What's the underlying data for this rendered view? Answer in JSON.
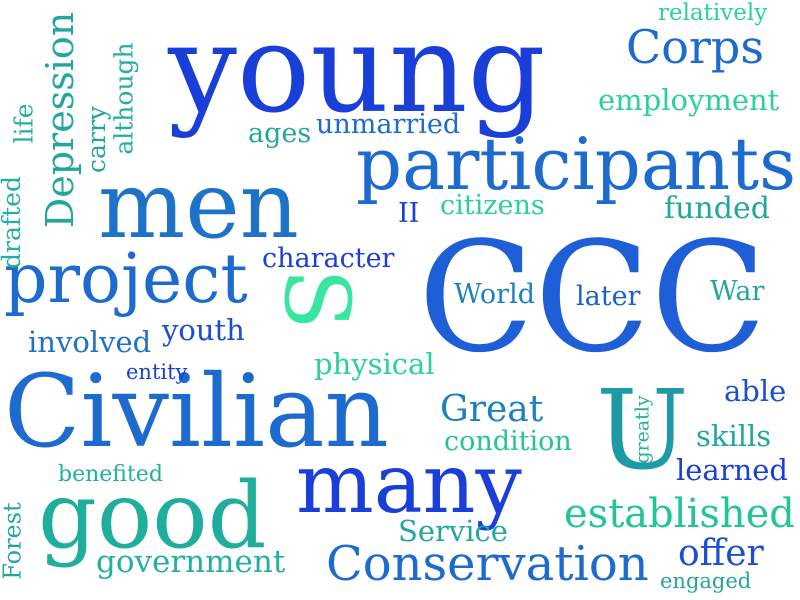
{
  "word_cloud": {
    "colors": {
      "royal_blue": "#1a3fd8",
      "mid_blue": "#1e6bd0",
      "teal": "#1e9aa6",
      "sea_green": "#23b99a",
      "mint": "#38e6a0"
    },
    "words": [
      {
        "key": "young",
        "text": "young",
        "color": "#1a3fd8",
        "orientation": "horizontal"
      },
      {
        "key": "ccc",
        "text": "CCC",
        "color": "#1e5ed6",
        "orientation": "horizontal"
      },
      {
        "key": "civilian",
        "text": "Civilian",
        "color": "#1e6bd0",
        "orientation": "horizontal"
      },
      {
        "key": "men",
        "text": "men",
        "color": "#1e73c8",
        "orientation": "horizontal"
      },
      {
        "key": "participants",
        "text": "participants",
        "color": "#1e6bd0",
        "orientation": "horizontal"
      },
      {
        "key": "many",
        "text": "many",
        "color": "#1a3fd8",
        "orientation": "horizontal"
      },
      {
        "key": "good",
        "text": "good",
        "color": "#1fae9c",
        "orientation": "horizontal"
      },
      {
        "key": "project",
        "text": "project",
        "color": "#1e6bd0",
        "orientation": "horizontal"
      },
      {
        "key": "conservation",
        "text": "Conservation",
        "color": "#1e6bd0",
        "orientation": "horizontal"
      },
      {
        "key": "s",
        "text": "S",
        "color": "#38e6a0",
        "orientation": "vertical"
      },
      {
        "key": "u",
        "text": "U",
        "color": "#1e9aa6",
        "orientation": "vertical"
      },
      {
        "key": "corps",
        "text": "Corps",
        "color": "#1e6bd0",
        "orientation": "horizontal"
      },
      {
        "key": "established",
        "text": "established",
        "color": "#23c49a",
        "orientation": "horizontal"
      },
      {
        "key": "depression",
        "text": "Depression",
        "color": "#23a6a0",
        "orientation": "vertical"
      },
      {
        "key": "great",
        "text": "Great",
        "color": "#1e80c4",
        "orientation": "horizontal"
      },
      {
        "key": "offer",
        "text": "offer",
        "color": "#1a4fd0",
        "orientation": "horizontal"
      },
      {
        "key": "government",
        "text": "government",
        "color": "#23b0a0",
        "orientation": "horizontal"
      },
      {
        "key": "character",
        "text": "character",
        "color": "#1a3fd8",
        "orientation": "horizontal"
      },
      {
        "key": "funded",
        "text": "funded",
        "color": "#23a6a0",
        "orientation": "horizontal"
      },
      {
        "key": "employment",
        "text": "employment",
        "color": "#2bd19a",
        "orientation": "horizontal"
      },
      {
        "key": "physical",
        "text": "physical",
        "color": "#2bd19a",
        "orientation": "horizontal"
      },
      {
        "key": "condition",
        "text": "condition",
        "color": "#23c49a",
        "orientation": "horizontal"
      },
      {
        "key": "unmarried",
        "text": "unmarried",
        "color": "#1e6bd0",
        "orientation": "horizontal"
      },
      {
        "key": "involved",
        "text": "involved",
        "color": "#1e73c8",
        "orientation": "horizontal"
      },
      {
        "key": "youth",
        "text": "youth",
        "color": "#1a4fd0",
        "orientation": "horizontal"
      },
      {
        "key": "world",
        "text": "World",
        "color": "#1e80c4",
        "orientation": "horizontal"
      },
      {
        "key": "later",
        "text": "later",
        "color": "#1a5fd0",
        "orientation": "horizontal"
      },
      {
        "key": "war",
        "text": "War",
        "color": "#23a6a0",
        "orientation": "horizontal"
      },
      {
        "key": "able",
        "text": "able",
        "color": "#1a4fd0",
        "orientation": "horizontal"
      },
      {
        "key": "skills",
        "text": "skills",
        "color": "#23a6a0",
        "orientation": "horizontal"
      },
      {
        "key": "learned",
        "text": "learned",
        "color": "#1a3fd8",
        "orientation": "horizontal"
      },
      {
        "key": "service",
        "text": "Service",
        "color": "#23a6a0",
        "orientation": "horizontal"
      },
      {
        "key": "citizens",
        "text": "citizens",
        "color": "#2bd19a",
        "orientation": "horizontal"
      },
      {
        "key": "ages",
        "text": "ages",
        "color": "#23a6a0",
        "orientation": "horizontal"
      },
      {
        "key": "ii",
        "text": "II",
        "color": "#1a3fd8",
        "orientation": "horizontal"
      },
      {
        "key": "relatively",
        "text": "relatively",
        "color": "#2bd19a",
        "orientation": "horizontal"
      },
      {
        "key": "entity",
        "text": "entity",
        "color": "#1a3fd8",
        "orientation": "horizontal"
      },
      {
        "key": "benefited",
        "text": "benefited",
        "color": "#23b0a0",
        "orientation": "horizontal"
      },
      {
        "key": "engaged",
        "text": "engaged",
        "color": "#23a6a0",
        "orientation": "horizontal"
      },
      {
        "key": "greatly",
        "text": "greatly",
        "color": "#23b0a0",
        "orientation": "vertical"
      },
      {
        "key": "forest",
        "text": "Forest",
        "color": "#23a6a0",
        "orientation": "vertical"
      },
      {
        "key": "drafted",
        "text": "drafted",
        "color": "#23b0a0",
        "orientation": "vertical"
      },
      {
        "key": "life",
        "text": "life",
        "color": "#23b0a0",
        "orientation": "vertical"
      },
      {
        "key": "carry",
        "text": "carry",
        "color": "#23a6a0",
        "orientation": "vertical"
      },
      {
        "key": "although",
        "text": "although",
        "color": "#23b0a0",
        "orientation": "vertical"
      }
    ]
  }
}
